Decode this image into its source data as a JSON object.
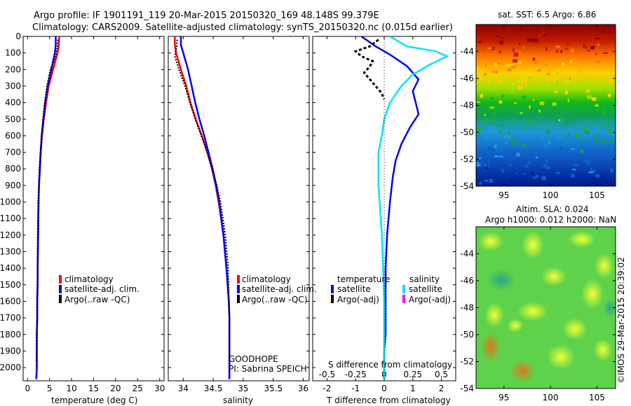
{
  "header": {
    "line1": "Argo profile: IF 1901191_119 20-Mar-2015 20150320_169 48.148S 99.379E",
    "line2": "Climatology: CARS2009. Satellite-adjusted climatology: synTS_20150320.nc (0.015d earlier)"
  },
  "colors": {
    "climatology": "#ff0000",
    "satellite": "#0000ff",
    "argo": "#000000",
    "sal_satellite": "#00e5ff",
    "sal_argo": "#ff00ff"
  },
  "legend_left": [
    "climatology",
    "satellite-adj. clim.",
    "Argo(..raw -QC)"
  ],
  "legend_right": {
    "temp_heading": "temperature",
    "sal_heading": "salinity",
    "items": [
      "satellite",
      "Argo(-adj)"
    ]
  },
  "station_note": {
    "line1": "GOODHOPE",
    "line2": "PI: Sabrina SPEICH"
  },
  "map_top": {
    "title": "sat. SST: 6.5 Argo: 6.86"
  },
  "map_bottom": {
    "title1": "Altim. SLA: 0.024",
    "title2": "Argo h1000: 0.012 h2000: NaN"
  },
  "stamp": "©IMOS 29-Mar-2015 20:39:02",
  "chart_data": [
    {
      "type": "line",
      "xlabel": "temperature (deg C)",
      "xlim": [
        -1,
        31
      ],
      "xticks": [
        0,
        5,
        10,
        15,
        20,
        25,
        30
      ],
      "ylim": [
        0,
        2080
      ],
      "yticks": [
        0,
        100,
        200,
        300,
        400,
        500,
        600,
        700,
        800,
        900,
        1000,
        1100,
        1200,
        1300,
        1400,
        1500,
        1600,
        1700,
        1800,
        1900,
        2000
      ],
      "yreversed": true,
      "series": [
        {
          "name": "climatology",
          "x": [
            7.2,
            7.1,
            6.8,
            5.8,
            4.8,
            4.2,
            3.7,
            3.3,
            3.0,
            2.8,
            2.6,
            2.5,
            2.4,
            2.3,
            2.3,
            2.2,
            2.2,
            2.1,
            2.1,
            2.1,
            2.0
          ],
          "y": [
            0,
            50,
            100,
            200,
            300,
            400,
            500,
            600,
            700,
            800,
            900,
            1000,
            1200,
            1400,
            1500,
            1600,
            1700,
            1800,
            1900,
            2000,
            2070
          ]
        },
        {
          "name": "satellite-adj. clim.",
          "x": [
            6.4,
            6.4,
            6.2,
            5.4,
            4.6,
            4.0,
            3.6,
            3.2,
            3.0,
            2.8,
            2.6,
            2.5,
            2.4,
            2.3,
            2.3,
            2.2,
            2.2,
            2.1,
            2.1,
            2.1,
            2.0
          ],
          "y": [
            0,
            50,
            100,
            200,
            300,
            400,
            500,
            600,
            700,
            800,
            900,
            1000,
            1200,
            1400,
            1500,
            1600,
            1700,
            1800,
            1900,
            2000,
            2070
          ]
        },
        {
          "name": "Argo(..raw -QC)",
          "x": [
            6.9,
            6.8,
            6.4,
            5.2,
            4.4,
            3.9,
            3.5,
            3.2,
            2.9,
            2.7,
            2.6,
            2.4,
            2.3,
            2.3,
            2.2,
            2.2,
            2.1,
            2.1,
            2.0
          ],
          "y": [
            20,
            60,
            120,
            200,
            300,
            400,
            500,
            600,
            700,
            800,
            900,
            1000,
            1200,
            1400,
            1600,
            1700,
            1800,
            1900,
            1960
          ]
        }
      ]
    },
    {
      "type": "line",
      "xlabel": "salinity",
      "xlim": [
        33.75,
        36.1
      ],
      "xticks": [
        34,
        34.5,
        35,
        35.5,
        36
      ],
      "ylim": [
        0,
        2080
      ],
      "yreversed": true,
      "series": [
        {
          "name": "climatology",
          "x": [
            33.86,
            33.86,
            33.88,
            33.96,
            34.05,
            34.12,
            34.21,
            34.31,
            34.4,
            34.48,
            34.54,
            34.59,
            34.67,
            34.72,
            34.74,
            34.76,
            34.77,
            34.77,
            34.77,
            34.77,
            34.77
          ],
          "y": [
            0,
            50,
            100,
            200,
            300,
            400,
            500,
            600,
            700,
            800,
            900,
            1000,
            1200,
            1400,
            1500,
            1600,
            1700,
            1800,
            1900,
            2000,
            2070
          ]
        },
        {
          "name": "satellite-adj. clim.",
          "x": [
            33.96,
            33.96,
            34.0,
            34.08,
            34.14,
            34.2,
            34.27,
            34.35,
            34.42,
            34.49,
            34.55,
            34.6,
            34.67,
            34.72,
            34.74,
            34.76,
            34.77,
            34.77,
            34.77,
            34.77,
            34.77
          ],
          "y": [
            0,
            50,
            100,
            200,
            300,
            400,
            500,
            600,
            700,
            800,
            900,
            1000,
            1200,
            1400,
            1500,
            1600,
            1700,
            1800,
            1900,
            2000,
            2070
          ]
        },
        {
          "name": "Argo(..raw -QC)",
          "x": [
            33.9,
            33.89,
            33.86,
            33.93,
            34.03,
            34.11,
            34.2,
            34.3,
            34.4,
            34.48,
            34.56,
            34.62,
            34.7,
            34.75,
            34.76,
            34.77,
            34.77,
            34.77
          ],
          "y": [
            20,
            60,
            120,
            200,
            300,
            400,
            500,
            600,
            700,
            800,
            900,
            1000,
            1200,
            1400,
            1600,
            1700,
            1800,
            1960
          ]
        }
      ]
    },
    {
      "type": "line",
      "xlabel": "T difference from climatology",
      "xlabel2": "S difference from climatology",
      "xlim": [
        -2.5,
        2.5
      ],
      "xticks": [
        -2,
        -1,
        0,
        1,
        2
      ],
      "xticks2": [
        -0.5,
        -0.25,
        0,
        0.25,
        0.5
      ],
      "xtick2_labels": [
        "-0.5",
        "-0.25",
        "0",
        "0.25",
        "0.5"
      ],
      "ylim": [
        0,
        2080
      ],
      "yreversed": true,
      "series": [
        {
          "name": "temperature satellite",
          "x": [
            -0.8,
            -0.3,
            0.2,
            0.8,
            1.2,
            1.0,
            1.1,
            1.2,
            0.9,
            0.6,
            0.4,
            0.3,
            0.2,
            0.1,
            0.05,
            0.05,
            0.05,
            0.0,
            0.0,
            0.0,
            0.0
          ],
          "y": [
            0,
            60,
            110,
            180,
            260,
            330,
            400,
            470,
            550,
            650,
            750,
            850,
            1000,
            1200,
            1400,
            1600,
            1800,
            1900,
            2000,
            2060,
            2070
          ]
        },
        {
          "name": "temperature Argo(-adj)",
          "x": [
            -0.2,
            -0.5,
            -1.0,
            -0.8,
            -0.4,
            -0.5,
            -0.7,
            -0.5,
            -0.3,
            -0.1,
            0.0
          ],
          "y": [
            20,
            60,
            90,
            120,
            150,
            180,
            220,
            260,
            300,
            340,
            380
          ]
        },
        {
          "name": "salinity satellite",
          "x": [
            0.05,
            0.2,
            0.45,
            0.55,
            0.4,
            0.25,
            0.15,
            0.05,
            0.0,
            -0.02,
            -0.05,
            -0.05,
            -0.05,
            -0.04,
            -0.03,
            -0.02,
            -0.01,
            0.0,
            0.0,
            0.0
          ],
          "y": [
            0,
            60,
            90,
            120,
            170,
            230,
            300,
            400,
            500,
            600,
            700,
            800,
            900,
            1000,
            1100,
            1200,
            1400,
            1600,
            1800,
            2070
          ]
        }
      ]
    },
    {
      "type": "heatmap",
      "title": "sat. SST: 6.5 Argo: 6.86",
      "xlim": [
        92,
        107
      ],
      "ylim": [
        -54,
        -42
      ],
      "xticks": [
        95,
        100,
        105
      ],
      "yticks": [
        -54,
        -52,
        -50,
        -48,
        -46,
        -44
      ]
    },
    {
      "type": "heatmap",
      "title": "Argo h1000: 0.012 h2000: NaN",
      "xlim": [
        92,
        107
      ],
      "ylim": [
        -54,
        -42
      ],
      "xticks": [
        95,
        100,
        105
      ],
      "yticks": [
        -54,
        -52,
        -50,
        -48,
        -46,
        -44
      ]
    }
  ]
}
